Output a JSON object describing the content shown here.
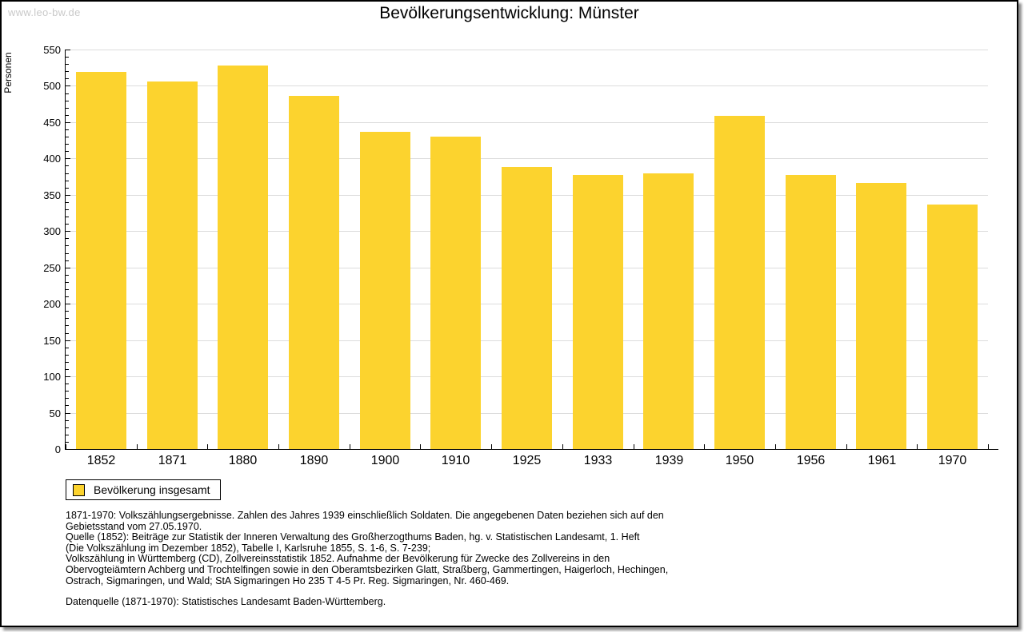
{
  "watermark": "www.leo-bw.de",
  "title": "Bevölkerungsentwicklung: Münster",
  "legend": {
    "label": "Bevölkerung insgesamt"
  },
  "colors": {
    "bar": "#FCD32E",
    "grid": "#DCDCDC",
    "axis": "#000000",
    "watermark": "#C9C9C9"
  },
  "chart_data": {
    "type": "bar",
    "title": "Bevölkerungsentwicklung: Münster",
    "categories": [
      "1852",
      "1871",
      "1880",
      "1890",
      "1900",
      "1910",
      "1925",
      "1933",
      "1939",
      "1950",
      "1956",
      "1961",
      "1970"
    ],
    "values": [
      519,
      506,
      528,
      486,
      437,
      430,
      388,
      377,
      379,
      459,
      377,
      366,
      337
    ],
    "series_name": "Bevölkerung insgesamt",
    "xlabel": "",
    "ylabel": "Personen",
    "ylim": [
      0,
      550
    ],
    "ytick_major": 50,
    "ytick_minor": 10,
    "grid": true,
    "legend_position": "bottom-left",
    "bar_color": "#FCD32E"
  },
  "footnotes": {
    "lines": [
      "1871-1970: Volkszählungsergebnisse. Zahlen des Jahres 1939 einschließlich Soldaten. Die angegebenen Daten beziehen sich auf den",
      "Gebietsstand vom 27.05.1970.",
      "Quelle (1852): Beiträge zur Statistik der Inneren Verwaltung des Großherzogthums Baden, hg. v. Statistischen Landesamt, 1. Heft",
      "(Die Volkszählung im Dezember 1852), Tabelle I, Karlsruhe 1855, S. 1-6, S. 7-239;",
      "Volkszählung in Württemberg (CD), Zollvereinsstatistik 1852. Aufnahme der Bevölkerung für Zwecke des Zollvereins in den",
      "Obervogteiämtern Achberg und Trochtelfingen sowie in den Oberamtsbezirken Glatt, Straßberg, Gammertingen, Haigerloch, Hechingen,",
      "Ostrach, Sigmaringen, und Wald; StA Sigmaringen Ho 235 T 4-5 Pr. Reg. Sigmaringen, Nr. 460-469."
    ],
    "source": "Datenquelle (1871-1970): Statistisches Landesamt Baden-Württemberg."
  }
}
